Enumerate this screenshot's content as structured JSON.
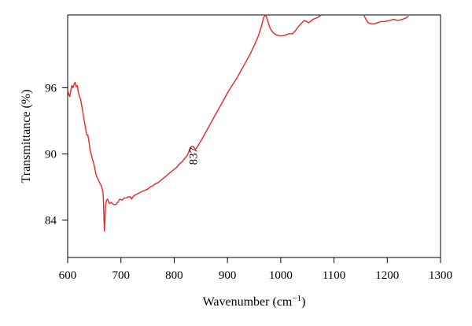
{
  "chart_data": {
    "type": "line",
    "title": "",
    "xlabel": "Wavenumber (cm",
    "xlabel_sup": "−1",
    "xlabel_suffix": ")",
    "ylabel": "Transmittance (%)",
    "xlim": [
      600,
      1300
    ],
    "ylim": [
      80.6,
      102.6
    ],
    "x_ticks": [
      600,
      700,
      800,
      900,
      1000,
      1100,
      1200,
      1300
    ],
    "y_ticks": [
      84,
      90,
      96
    ],
    "grid": false,
    "line_color": "#e8242a",
    "annotations": [
      {
        "text": "837",
        "x": 843,
        "y": 89.8
      }
    ],
    "series": [
      {
        "points": [
          [
            600,
            95.8
          ],
          [
            602,
            95.4
          ],
          [
            604,
            95.2
          ],
          [
            606,
            95.8
          ],
          [
            608,
            96.2
          ],
          [
            610,
            96.0
          ],
          [
            612,
            96.3
          ],
          [
            614,
            96.5
          ],
          [
            616,
            96.1
          ],
          [
            618,
            96.2
          ],
          [
            620,
            95.6
          ],
          [
            622,
            95.2
          ],
          [
            624,
            95.0
          ],
          [
            626,
            94.5
          ],
          [
            628,
            93.9
          ],
          [
            630,
            93.3
          ],
          [
            632,
            92.8
          ],
          [
            634,
            92.2
          ],
          [
            636,
            91.7
          ],
          [
            638,
            91.7
          ],
          [
            640,
            91.1
          ],
          [
            642,
            90.4
          ],
          [
            644,
            90.0
          ],
          [
            646,
            89.6
          ],
          [
            648,
            89.3
          ],
          [
            650,
            88.9
          ],
          [
            652,
            88.4
          ],
          [
            654,
            88.0
          ],
          [
            656,
            87.8
          ],
          [
            658,
            87.6
          ],
          [
            660,
            87.4
          ],
          [
            662,
            87.2
          ],
          [
            664,
            87.0
          ],
          [
            666,
            86.6
          ],
          [
            667,
            86.0
          ],
          [
            668,
            84.6
          ],
          [
            669,
            83.0
          ],
          [
            670,
            84.0
          ],
          [
            671,
            85.3
          ],
          [
            673,
            85.8
          ],
          [
            675,
            85.9
          ],
          [
            678,
            85.5
          ],
          [
            682,
            85.6
          ],
          [
            686,
            85.4
          ],
          [
            690,
            85.4
          ],
          [
            694,
            85.6
          ],
          [
            698,
            85.9
          ],
          [
            702,
            85.8
          ],
          [
            706,
            86.0
          ],
          [
            710,
            86.0
          ],
          [
            714,
            86.1
          ],
          [
            718,
            86.1
          ],
          [
            720,
            85.9
          ],
          [
            724,
            86.2
          ],
          [
            728,
            86.3
          ],
          [
            732,
            86.4
          ],
          [
            736,
            86.5
          ],
          [
            740,
            86.6
          ],
          [
            745,
            86.7
          ],
          [
            750,
            86.8
          ],
          [
            755,
            87.0
          ],
          [
            760,
            87.1
          ],
          [
            765,
            87.3
          ],
          [
            770,
            87.4
          ],
          [
            775,
            87.6
          ],
          [
            780,
            87.8
          ],
          [
            785,
            88.0
          ],
          [
            790,
            88.2
          ],
          [
            795,
            88.4
          ],
          [
            800,
            88.6
          ],
          [
            805,
            88.8
          ],
          [
            810,
            89.1
          ],
          [
            815,
            89.3
          ],
          [
            820,
            89.6
          ],
          [
            825,
            89.9
          ],
          [
            828,
            90.3
          ],
          [
            831,
            90.6
          ],
          [
            834,
            90.7
          ],
          [
            837,
            90.6
          ],
          [
            840,
            90.4
          ],
          [
            843,
            90.6
          ],
          [
            848,
            91.0
          ],
          [
            855,
            91.6
          ],
          [
            862,
            92.2
          ],
          [
            870,
            92.9
          ],
          [
            878,
            93.6
          ],
          [
            886,
            94.3
          ],
          [
            894,
            95.0
          ],
          [
            902,
            95.7
          ],
          [
            910,
            96.3
          ],
          [
            918,
            96.9
          ],
          [
            926,
            97.6
          ],
          [
            934,
            98.3
          ],
          [
            942,
            99.0
          ],
          [
            950,
            99.8
          ],
          [
            958,
            100.7
          ],
          [
            964,
            101.6
          ],
          [
            968,
            102.4
          ],
          [
            972,
            102.6
          ],
          [
            976,
            102.0
          ],
          [
            980,
            101.4
          ],
          [
            984,
            101.1
          ],
          [
            988,
            100.9
          ],
          [
            992,
            100.8
          ],
          [
            998,
            100.7
          ],
          [
            1004,
            100.7
          ],
          [
            1010,
            100.8
          ],
          [
            1016,
            100.9
          ],
          [
            1022,
            100.9
          ],
          [
            1028,
            101.2
          ],
          [
            1034,
            101.6
          ],
          [
            1040,
            101.9
          ],
          [
            1044,
            102.1
          ],
          [
            1048,
            102.0
          ],
          [
            1052,
            101.9
          ],
          [
            1056,
            102.0
          ],
          [
            1060,
            102.2
          ],
          [
            1066,
            102.3
          ],
          [
            1070,
            102.4
          ],
          [
            1076,
            102.6
          ]
        ]
      },
      {
        "points": [
          [
            1156,
            102.6
          ],
          [
            1160,
            102.2
          ],
          [
            1164,
            101.9
          ],
          [
            1170,
            101.8
          ],
          [
            1176,
            101.8
          ],
          [
            1182,
            101.9
          ],
          [
            1188,
            102.0
          ],
          [
            1196,
            102.0
          ],
          [
            1204,
            102.1
          ],
          [
            1212,
            102.2
          ],
          [
            1220,
            102.1
          ],
          [
            1228,
            102.2
          ],
          [
            1234,
            102.3
          ],
          [
            1240,
            102.5
          ]
        ]
      }
    ]
  }
}
